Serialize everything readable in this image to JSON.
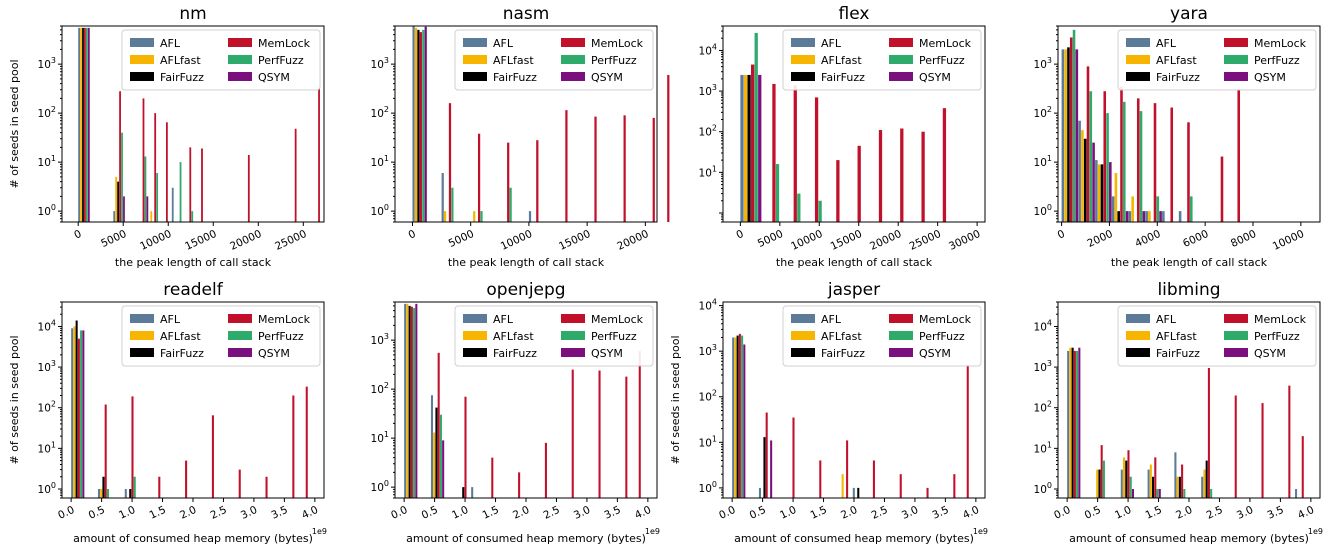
{
  "chart_data": [
    {
      "type": "bar",
      "title": "nm",
      "xlabel": "the peak length of call stack",
      "ylabel": "# of seeds in seed pool",
      "yscale": "log",
      "ylim": [
        0.6,
        6000
      ],
      "xlim": [
        -1800,
        27300
      ],
      "xticks": [
        0,
        5000,
        10000,
        15000,
        20000,
        25000
      ],
      "xtick_labels": [
        "0",
        "5000",
        "10000",
        "15000",
        "20000",
        "25000"
      ],
      "yticks": [
        1,
        10,
        100,
        1000
      ],
      "bin_width": 1300,
      "bin_start": 0,
      "offset_label": "",
      "legend": "top-right",
      "series": [
        {
          "name": "AFL",
          "values": [
            5500,
            0,
            0,
            1,
            0,
            0,
            0,
            0,
            3
          ]
        },
        {
          "name": "AFLfast",
          "values": [
            5500,
            0,
            0,
            5,
            0,
            0,
            1,
            0,
            0
          ]
        },
        {
          "name": "FairFuzz",
          "values": [
            5500,
            0,
            0,
            4,
            0,
            0,
            0,
            0,
            0
          ]
        },
        {
          "name": "MemLock",
          "values": [
            5500,
            0,
            0,
            280,
            0,
            200,
            100,
            65,
            0,
            20,
            19,
            0,
            0,
            0,
            14,
            0,
            0,
            0,
            48,
            0,
            330
          ]
        },
        {
          "name": "PerfFuzz",
          "values": [
            5500,
            0,
            0,
            40,
            0,
            13,
            6,
            0,
            10,
            1
          ]
        },
        {
          "name": "QSYM",
          "values": [
            5500,
            0,
            0,
            2,
            0,
            2
          ]
        }
      ]
    },
    {
      "type": "bar",
      "title": "nasm",
      "xlabel": "the peak length of call stack",
      "ylabel": "",
      "yscale": "log",
      "ylim": [
        0.6,
        6000
      ],
      "xlim": [
        -1500,
        21000
      ],
      "xticks": [
        0,
        5000,
        10000,
        15000,
        20000
      ],
      "xtick_labels": [
        "0",
        "5000",
        "10000",
        "15000",
        "20000"
      ],
      "yticks": [
        1,
        10,
        100,
        1000
      ],
      "bin_width": 1250,
      "bin_start": 0,
      "offset_label": "",
      "legend": "top-right",
      "series": [
        {
          "name": "AFL",
          "values": [
            6000,
            0,
            6,
            0,
            0,
            0,
            0,
            0,
            1
          ]
        },
        {
          "name": "AFLfast",
          "values": [
            5500,
            0,
            1,
            0,
            1,
            0,
            0
          ]
        },
        {
          "name": "FairFuzz",
          "values": [
            5000,
            0,
            0,
            0,
            0,
            0,
            0
          ]
        },
        {
          "name": "MemLock",
          "values": [
            4500,
            0,
            160,
            0,
            38,
            0,
            25,
            0,
            28,
            0,
            115,
            0,
            85,
            0,
            90,
            0,
            80,
            600
          ]
        },
        {
          "name": "PerfFuzz",
          "values": [
            5000,
            0,
            3,
            0,
            1,
            0,
            3
          ]
        },
        {
          "name": "QSYM",
          "values": [
            5800
          ]
        }
      ]
    },
    {
      "type": "bar",
      "title": "flex",
      "xlabel": "the peak length of call stack",
      "ylabel": "",
      "yscale": "log",
      "ylim": [
        0.6,
        40000
      ],
      "xlim": [
        -2200,
        31000
      ],
      "xticks": [
        0,
        5000,
        10000,
        15000,
        20000,
        25000,
        30000
      ],
      "xtick_labels": [
        "0",
        "5000",
        "10000",
        "15000",
        "20000",
        "25000",
        "30000"
      ],
      "yticks": [
        10,
        100,
        1000,
        10000
      ],
      "bin_width": 2700,
      "bin_start": 0,
      "offset_label": "",
      "legend": "top-right",
      "series": [
        {
          "name": "AFL",
          "values": [
            2500
          ]
        },
        {
          "name": "AFLfast",
          "values": [
            2500
          ]
        },
        {
          "name": "FairFuzz",
          "values": [
            2500
          ]
        },
        {
          "name": "MemLock",
          "values": [
            4500,
            1500,
            1400,
            700,
            20,
            45,
            110,
            120,
            100,
            380
          ]
        },
        {
          "name": "PerfFuzz",
          "values": [
            27000,
            16,
            3,
            2
          ]
        },
        {
          "name": "QSYM",
          "values": [
            2500
          ]
        }
      ]
    },
    {
      "type": "bar",
      "title": "yara",
      "xlabel": "the peak length of call stack",
      "ylabel": "",
      "yscale": "log",
      "ylim": [
        0.6,
        6000
      ],
      "xlim": [
        -150,
        10800
      ],
      "xticks": [
        0,
        2000,
        4000,
        6000,
        8000,
        10000
      ],
      "xtick_labels": [
        "0",
        "2000",
        "4000",
        "6000",
        "8000",
        "10000"
      ],
      "yticks": [
        1,
        10,
        100,
        1000
      ],
      "bin_width": 700,
      "bin_start": 0,
      "offset_label": "",
      "legend": "top-right",
      "series": [
        {
          "name": "AFL",
          "values": [
            2000,
            70,
            11,
            2,
            1,
            1,
            1,
            1
          ]
        },
        {
          "name": "AFLfast",
          "values": [
            2000,
            45,
            9,
            6,
            2,
            1,
            0
          ]
        },
        {
          "name": "FairFuzz",
          "values": [
            2200,
            30,
            9,
            1,
            0,
            0
          ]
        },
        {
          "name": "MemLock",
          "values": [
            3500,
            900,
            280,
            350,
            200,
            160,
            130,
            65,
            0,
            13,
            300
          ]
        },
        {
          "name": "PerfFuzz",
          "values": [
            5000,
            280,
            100,
            170,
            110,
            2,
            0,
            2
          ]
        },
        {
          "name": "QSYM",
          "values": [
            2000,
            25,
            10,
            1,
            1,
            1
          ]
        }
      ]
    },
    {
      "type": "bar",
      "title": "readelf",
      "xlabel": "amount of consumed heap memory (bytes)",
      "ylabel": "# of seeds in seed pool",
      "yscale": "log",
      "ylim": [
        0.6,
        40000
      ],
      "xlim": [
        -150000000.0,
        4150000000.0
      ],
      "xticks": [
        0,
        500000000.0,
        1000000000.0,
        1500000000.0,
        2000000000.0,
        2500000000.0,
        3000000000.0,
        3500000000.0,
        4000000000.0
      ],
      "xtick_labels": [
        "0.0",
        "0.5",
        "1.0",
        "1.5",
        "2.0",
        "2.5",
        "3.0",
        "3.5",
        "4.0"
      ],
      "yticks": [
        1,
        10,
        100,
        1000,
        10000
      ],
      "bin_width": 220000000.0,
      "bin_start": 0,
      "offset_label": "1e9",
      "legend": "top-right",
      "series": [
        {
          "name": "AFL",
          "values": [
            9000,
            0,
            1,
            0,
            1
          ]
        },
        {
          "name": "AFLfast",
          "values": [
            10000,
            0,
            1,
            0,
            0
          ]
        },
        {
          "name": "FairFuzz",
          "values": [
            14000,
            0,
            2,
            0,
            1
          ]
        },
        {
          "name": "MemLock",
          "values": [
            5000,
            0,
            120,
            0,
            190,
            0,
            2,
            0,
            5,
            0,
            65,
            0,
            3,
            0,
            2,
            0,
            200,
            330
          ]
        },
        {
          "name": "PerfFuzz",
          "values": [
            8000,
            0,
            1,
            0,
            2
          ]
        },
        {
          "name": "QSYM",
          "values": [
            8000
          ]
        }
      ]
    },
    {
      "type": "bar",
      "title": "openjepg",
      "xlabel": "amount of consumed heap memory (bytes)",
      "ylabel": "",
      "yscale": "log",
      "ylim": [
        0.6,
        6000
      ],
      "xlim": [
        -150000000.0,
        4150000000.0
      ],
      "xticks": [
        0,
        500000000.0,
        1000000000.0,
        1500000000.0,
        2000000000.0,
        2500000000.0,
        3000000000.0,
        3500000000.0,
        4000000000.0
      ],
      "xtick_labels": [
        "0.0",
        "0.5",
        "1.0",
        "1.5",
        "2.0",
        "2.5",
        "3.0",
        "3.5",
        "4.0"
      ],
      "yticks": [
        1,
        10,
        100,
        1000
      ],
      "bin_width": 220000000.0,
      "bin_start": 0,
      "offset_label": "1e9",
      "legend": "top-right",
      "series": [
        {
          "name": "AFL",
          "values": [
            5500,
            0,
            75,
            0,
            0,
            1
          ]
        },
        {
          "name": "AFLfast",
          "values": [
            5500,
            0,
            13,
            0,
            0,
            0
          ]
        },
        {
          "name": "FairFuzz",
          "values": [
            5000,
            0,
            42,
            0,
            1,
            0
          ]
        },
        {
          "name": "MemLock",
          "values": [
            4800,
            0,
            550,
            0,
            70,
            0,
            4,
            0,
            2,
            0,
            8,
            0,
            250,
            0,
            240,
            0,
            180,
            600
          ]
        },
        {
          "name": "PerfFuzz",
          "values": [
            4500,
            0,
            30
          ]
        },
        {
          "name": "QSYM",
          "values": [
            5500,
            0,
            9
          ]
        }
      ]
    },
    {
      "type": "bar",
      "title": "jasper",
      "xlabel": "amount of consumed heap memory (bytes)",
      "ylabel": "# of seeds in seed pool",
      "yscale": "log",
      "ylim": [
        0.6,
        12000
      ],
      "xlim": [
        -150000000.0,
        4150000000.0
      ],
      "xticks": [
        0,
        500000000.0,
        1000000000.0,
        1500000000.0,
        2000000000.0,
        2500000000.0,
        3000000000.0,
        3500000000.0,
        4000000000.0
      ],
      "xtick_labels": [
        "0.0",
        "0.5",
        "1.0",
        "1.5",
        "2.0",
        "2.5",
        "3.0",
        "3.5",
        "4.0"
      ],
      "yticks": [
        1,
        10,
        100,
        1000,
        10000
      ],
      "bin_width": 220000000.0,
      "bin_start": 0,
      "offset_label": "1e9",
      "legend": "top-right",
      "series": [
        {
          "name": "AFL",
          "values": [
            2000,
            0,
            1,
            0,
            0,
            0,
            0,
            0,
            0,
            1
          ]
        },
        {
          "name": "AFLfast",
          "values": [
            2000,
            0,
            0,
            0,
            0,
            0,
            0,
            0,
            2,
            0
          ]
        },
        {
          "name": "FairFuzz",
          "values": [
            2200,
            0,
            13,
            0,
            0,
            0,
            0,
            0,
            0,
            1
          ]
        },
        {
          "name": "MemLock",
          "values": [
            2400,
            0,
            45,
            0,
            35,
            0,
            4,
            0,
            11,
            0,
            4,
            0,
            2,
            0,
            1,
            0,
            2,
            500
          ]
        },
        {
          "name": "PerfFuzz",
          "values": [
            2200,
            0,
            0
          ]
        },
        {
          "name": "QSYM",
          "values": [
            1400,
            0,
            11
          ]
        }
      ]
    },
    {
      "type": "bar",
      "title": "libming",
      "xlabel": "amount of consumed heap memory (bytes)",
      "ylabel": "",
      "yscale": "log",
      "ylim": [
        0.6,
        40000
      ],
      "xlim": [
        -150000000.0,
        4150000000.0
      ],
      "xticks": [
        0,
        500000000.0,
        1000000000.0,
        1500000000.0,
        2000000000.0,
        2500000000.0,
        3000000000.0,
        3500000000.0,
        4000000000.0
      ],
      "xtick_labels": [
        "0.0",
        "0.5",
        "1.0",
        "1.5",
        "2.0",
        "2.5",
        "3.0",
        "3.5",
        "4.0"
      ],
      "yticks": [
        1,
        10,
        100,
        1000,
        10000
      ],
      "bin_width": 220000000.0,
      "bin_start": 0,
      "offset_label": "1e9",
      "legend": "top-right",
      "series": [
        {
          "name": "AFL",
          "values": [
            2500,
            0,
            0,
            0,
            3,
            0,
            3,
            0,
            8,
            0,
            2,
            0,
            0,
            0,
            0,
            0,
            0,
            1
          ]
        },
        {
          "name": "AFLfast",
          "values": [
            3000,
            0,
            3,
            0,
            6,
            0,
            4,
            0,
            2,
            0,
            3
          ]
        },
        {
          "name": "FairFuzz",
          "values": [
            3000,
            0,
            3,
            0,
            5,
            0,
            2,
            0,
            2,
            0,
            5
          ]
        },
        {
          "name": "MemLock",
          "values": [
            2500,
            0,
            12,
            0,
            9,
            0,
            6,
            0,
            4,
            0,
            950,
            0,
            200,
            0,
            130,
            0,
            350,
            20
          ]
        },
        {
          "name": "PerfFuzz",
          "values": [
            2500,
            0,
            5,
            0,
            2,
            0,
            1,
            0,
            1,
            0,
            1
          ]
        },
        {
          "name": "QSYM",
          "values": [
            3000,
            0,
            0,
            0,
            1,
            0,
            1
          ]
        }
      ]
    }
  ],
  "colors": {
    "AFL": "#5b7b99",
    "AFLfast": "#f7b500",
    "FairFuzz": "#000000",
    "MemLock": "#c0102a",
    "PerfFuzz": "#2eaa6a",
    "QSYM": "#7b0f7e"
  }
}
